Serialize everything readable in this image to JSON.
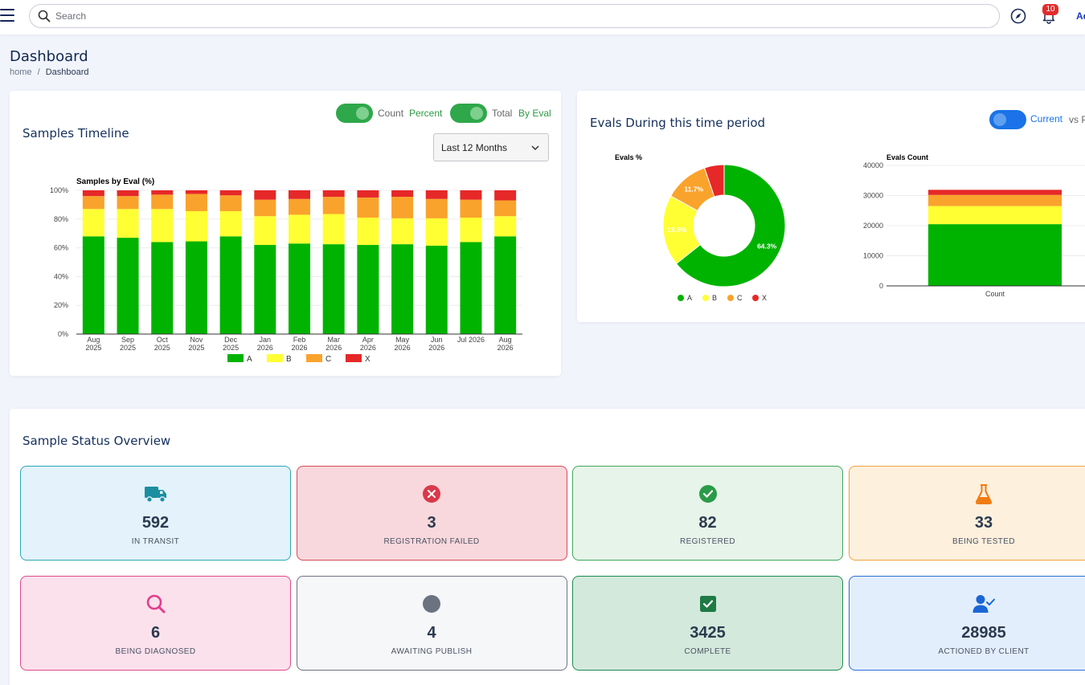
{
  "header": {
    "search_placeholder": "Search",
    "notification_count": "10",
    "user_label": "Ad"
  },
  "page": {
    "title": "Dashboard"
  },
  "breadcrumb": {
    "home": "home",
    "separator": "/",
    "current": "Dashboard"
  },
  "timeline": {
    "title": "Samples Timeline",
    "toggle1_left": "Count",
    "toggle1_right": "Percent",
    "toggle2_left": "Total",
    "toggle2_right": "By Eval",
    "range_select": "Last 12 Months"
  },
  "evals": {
    "title": "Evals During this time period",
    "toggle_right": "Current",
    "toggle_suffix": "vs P"
  },
  "status": {
    "title": "Sample Status Overview",
    "cards": [
      {
        "value": "592",
        "label": "IN TRANSIT",
        "icon": "truck-icon",
        "bg": "#e3f2fb",
        "border": "#2aa9b4",
        "icon_color": "#1b8fa0"
      },
      {
        "value": "3",
        "label": "REGISTRATION FAILED",
        "icon": "error-circle-icon",
        "bg": "#f8d8dc",
        "border": "#d94a57",
        "icon_color": "#d9394a"
      },
      {
        "value": "82",
        "label": "REGISTERED",
        "icon": "check-circle-icon",
        "bg": "#e7f4e9",
        "border": "#3ca858",
        "icon_color": "#2a9b48"
      },
      {
        "value": "33",
        "label": "BEING TESTED",
        "icon": "flask-icon",
        "bg": "#fdf0dd",
        "border": "#f0a23c",
        "icon_color": "#f07b12"
      },
      {
        "value": "6",
        "label": "BEING DIAGNOSED",
        "icon": "magnifier-icon",
        "bg": "#fbe1ec",
        "border": "#e14a8c",
        "icon_color": "#e33d8e"
      },
      {
        "value": "4",
        "label": "AWAITING PUBLISH",
        "icon": "dot-circle-icon",
        "bg": "#f6f7f9",
        "border": "#6c7280",
        "icon_color": "#6c7280"
      },
      {
        "value": "3425",
        "label": "COMPLETE",
        "icon": "check-square-icon",
        "bg": "#d3e9dc",
        "border": "#1e8a4f",
        "icon_color": "#1f7a45"
      },
      {
        "value": "28985",
        "label": "ACTIONED BY CLIENT",
        "icon": "user-check-icon",
        "bg": "#e3eefd",
        "border": "#2b6fd8",
        "icon_color": "#1a66d6"
      }
    ]
  },
  "colors": {
    "A": "#00b300",
    "B": "#ffff33",
    "C": "#f9a32c",
    "X": "#e62828"
  },
  "chart_data": [
    {
      "type": "bar",
      "stacked": true,
      "title": "Samples by Eval (%)",
      "categories": [
        [
          "Aug",
          "2025"
        ],
        [
          "Sep",
          "2025"
        ],
        [
          "Oct",
          "2025"
        ],
        [
          "Nov",
          "2025"
        ],
        [
          "Dec",
          "2025"
        ],
        [
          "Jan",
          "2026"
        ],
        [
          "Feb",
          "2026"
        ],
        [
          "Mar",
          "2026"
        ],
        [
          "Apr",
          "2026"
        ],
        [
          "May",
          "2026"
        ],
        [
          "Jun",
          "2026"
        ],
        [
          "Jul 2026"
        ],
        [
          "Aug",
          "2026"
        ]
      ],
      "series": [
        {
          "name": "A",
          "values": [
            68,
            67,
            64,
            64.5,
            68,
            62,
            63,
            62.5,
            62,
            62.5,
            61.5,
            64,
            68
          ]
        },
        {
          "name": "B",
          "values": [
            19,
            20,
            23,
            21,
            17.5,
            20,
            20,
            21,
            19,
            18,
            19,
            17,
            14
          ]
        },
        {
          "name": "C",
          "values": [
            9,
            9,
            10,
            12,
            11,
            11.5,
            11,
            12,
            14,
            15,
            13.5,
            12.5,
            11
          ]
        },
        {
          "name": "X",
          "values": [
            4,
            4,
            3,
            2.5,
            3.5,
            6.5,
            6,
            4.5,
            5,
            4.5,
            6,
            6.5,
            7
          ]
        }
      ],
      "ylim": [
        0,
        100
      ],
      "yticks": [
        "0%",
        "20%",
        "40%",
        "60%",
        "80%",
        "100%"
      ],
      "legend": [
        "A",
        "B",
        "C",
        "X"
      ],
      "legend_position": "bottom"
    },
    {
      "type": "pie",
      "donut": true,
      "title": "Evals %",
      "labels": [
        "A",
        "B",
        "C",
        "X"
      ],
      "values": [
        64.3,
        18.8,
        11.7,
        5.2
      ],
      "data_labels": [
        "64.3%",
        "18.8%",
        "11.7%",
        ""
      ],
      "legend_position": "bottom"
    },
    {
      "type": "bar",
      "stacked": true,
      "title": "Evals Count",
      "categories": [
        "Count"
      ],
      "series": [
        {
          "name": "A",
          "values": [
            20500
          ]
        },
        {
          "name": "B",
          "values": [
            6000
          ]
        },
        {
          "name": "C",
          "values": [
            3700
          ]
        },
        {
          "name": "X",
          "values": [
            1700
          ]
        }
      ],
      "ylim": [
        0,
        40000
      ],
      "yticks": [
        "0",
        "10000",
        "20000",
        "30000",
        "40000"
      ]
    }
  ]
}
